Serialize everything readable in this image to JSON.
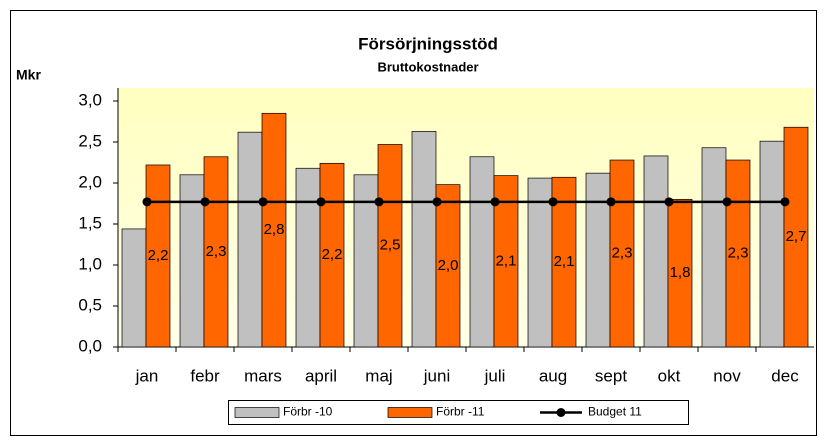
{
  "chart_data": {
    "type": "bar",
    "title": "Försörjningsstöd",
    "subtitle": "Bruttokostnader",
    "y_label": "Mkr",
    "categories": [
      "jan",
      "febr",
      "mars",
      "april",
      "maj",
      "juni",
      "juli",
      "aug",
      "sept",
      "okt",
      "nov",
      "dec"
    ],
    "series": [
      {
        "name": "Förbr -10",
        "color": "#c0c0c0",
        "values": [
          1.44,
          2.1,
          2.62,
          2.18,
          2.1,
          2.63,
          2.32,
          2.06,
          2.12,
          2.33,
          2.43,
          2.51
        ]
      },
      {
        "name": "Förbr -11",
        "color": "#ff6600",
        "values": [
          2.22,
          2.32,
          2.85,
          2.24,
          2.47,
          1.98,
          2.09,
          2.07,
          2.28,
          1.8,
          2.28,
          2.68
        ],
        "value_labels": [
          "2,2",
          "2,3",
          "2,8",
          "2,2",
          "2,5",
          "2,0",
          "2,1",
          "2,1",
          "2,3",
          "1,8",
          "2,3",
          "2,7"
        ]
      },
      {
        "name": "Budget 11",
        "color": "#000000",
        "type": "line",
        "values": [
          1.77,
          1.77,
          1.77,
          1.77,
          1.77,
          1.77,
          1.77,
          1.77,
          1.77,
          1.77,
          1.77,
          1.77
        ]
      }
    ],
    "ylim": [
      0,
      3
    ],
    "yticks": [
      {
        "value": 0,
        "label": "0,0"
      },
      {
        "value": 0.5,
        "label": "0,5"
      },
      {
        "value": 1,
        "label": "1,0"
      },
      {
        "value": 1.5,
        "label": "1,5"
      },
      {
        "value": 2,
        "label": "2,0"
      },
      {
        "value": 2.5,
        "label": "2,5"
      },
      {
        "value": 3,
        "label": "3,0"
      }
    ],
    "legend": "bottom"
  }
}
